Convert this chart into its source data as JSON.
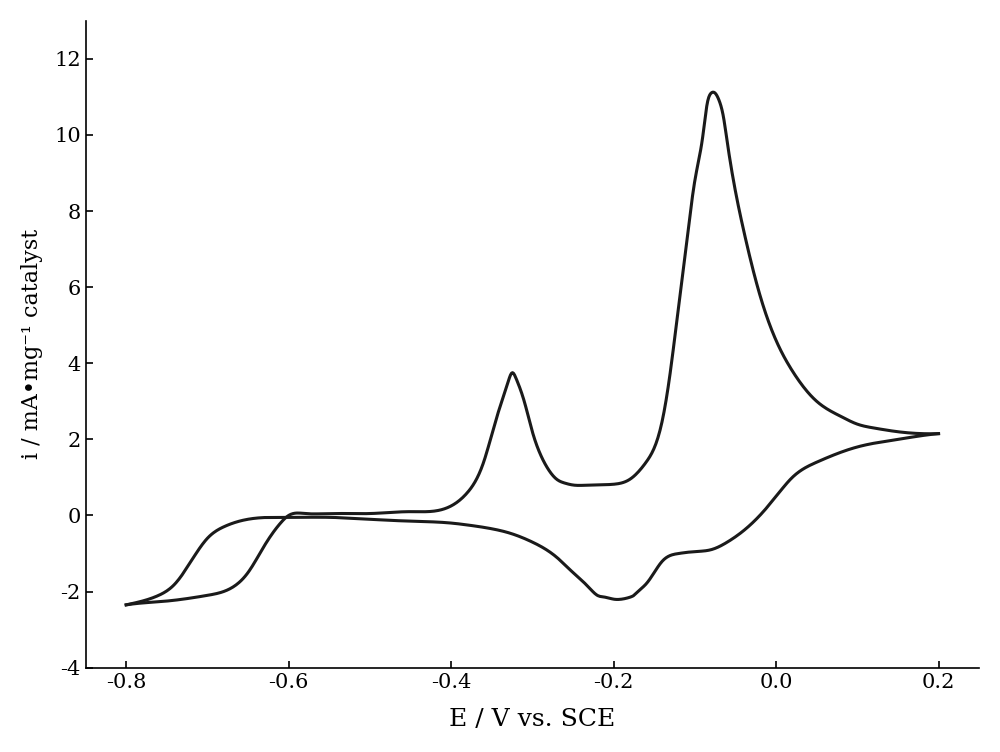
{
  "xlabel": "E / V vs. SCE",
  "ylabel": "i / mA•mg⁻¹ catalyst",
  "xlim": [
    -0.85,
    0.25
  ],
  "ylim": [
    -4,
    13
  ],
  "xticks": [
    -0.8,
    -0.6,
    -0.4,
    -0.2,
    0.0,
    0.2
  ],
  "yticks": [
    -4,
    -2,
    0,
    2,
    4,
    6,
    8,
    10,
    12
  ],
  "line_color": "#1a1a1a",
  "line_width": 2.2,
  "background_color": "#ffffff",
  "xlabel_fontsize": 18,
  "ylabel_fontsize": 16,
  "tick_fontsize": 15,
  "cv_forward": [
    [
      -0.8,
      -2.35
    ],
    [
      -0.78,
      -2.3
    ],
    [
      -0.75,
      -2.25
    ],
    [
      -0.73,
      -2.2
    ],
    [
      -0.7,
      -2.1
    ],
    [
      -0.67,
      -1.9
    ],
    [
      -0.65,
      -1.5
    ],
    [
      -0.63,
      -0.8
    ],
    [
      -0.61,
      -0.2
    ],
    [
      -0.6,
      0.0
    ],
    [
      -0.58,
      0.05
    ],
    [
      -0.55,
      0.05
    ],
    [
      -0.5,
      0.05
    ],
    [
      -0.45,
      0.1
    ],
    [
      -0.4,
      0.25
    ],
    [
      -0.38,
      0.6
    ],
    [
      -0.36,
      1.4
    ],
    [
      -0.345,
      2.5
    ],
    [
      -0.33,
      3.5
    ],
    [
      -0.325,
      3.75
    ],
    [
      -0.32,
      3.6
    ],
    [
      -0.31,
      3.0
    ],
    [
      -0.3,
      2.2
    ],
    [
      -0.29,
      1.6
    ],
    [
      -0.28,
      1.2
    ],
    [
      -0.27,
      0.95
    ],
    [
      -0.26,
      0.85
    ],
    [
      -0.25,
      0.8
    ],
    [
      -0.23,
      0.8
    ],
    [
      -0.2,
      0.82
    ],
    [
      -0.18,
      0.95
    ],
    [
      -0.16,
      1.4
    ],
    [
      -0.14,
      2.5
    ],
    [
      -0.13,
      3.8
    ],
    [
      -0.12,
      5.5
    ],
    [
      -0.11,
      7.2
    ],
    [
      -0.1,
      8.8
    ],
    [
      -0.09,
      10.0
    ],
    [
      -0.085,
      10.8
    ],
    [
      -0.08,
      11.1
    ],
    [
      -0.075,
      11.1
    ],
    [
      -0.07,
      10.9
    ],
    [
      -0.065,
      10.5
    ],
    [
      -0.06,
      9.8
    ],
    [
      -0.04,
      7.5
    ],
    [
      -0.02,
      5.8
    ],
    [
      0.0,
      4.6
    ],
    [
      0.02,
      3.8
    ],
    [
      0.05,
      3.0
    ],
    [
      0.08,
      2.6
    ],
    [
      0.1,
      2.4
    ],
    [
      0.12,
      2.3
    ],
    [
      0.15,
      2.2
    ],
    [
      0.18,
      2.15
    ],
    [
      0.2,
      2.15
    ]
  ],
  "cv_backward": [
    [
      0.2,
      2.15
    ],
    [
      0.18,
      2.1
    ],
    [
      0.15,
      2.0
    ],
    [
      0.1,
      1.8
    ],
    [
      0.05,
      1.4
    ],
    [
      0.02,
      1.0
    ],
    [
      0.0,
      0.5
    ],
    [
      -0.02,
      0.0
    ],
    [
      -0.04,
      -0.4
    ],
    [
      -0.06,
      -0.7
    ],
    [
      -0.08,
      -0.9
    ],
    [
      -0.1,
      -0.95
    ],
    [
      -0.12,
      -1.0
    ],
    [
      -0.13,
      -1.05
    ],
    [
      -0.14,
      -1.2
    ],
    [
      -0.15,
      -1.5
    ],
    [
      -0.16,
      -1.8
    ],
    [
      -0.17,
      -2.0
    ],
    [
      -0.175,
      -2.1
    ],
    [
      -0.18,
      -2.15
    ],
    [
      -0.19,
      -2.2
    ],
    [
      -0.2,
      -2.2
    ],
    [
      -0.21,
      -2.15
    ],
    [
      -0.22,
      -2.1
    ],
    [
      -0.23,
      -1.9
    ],
    [
      -0.25,
      -1.5
    ],
    [
      -0.27,
      -1.1
    ],
    [
      -0.3,
      -0.7
    ],
    [
      -0.33,
      -0.45
    ],
    [
      -0.35,
      -0.35
    ],
    [
      -0.38,
      -0.25
    ],
    [
      -0.4,
      -0.2
    ],
    [
      -0.45,
      -0.15
    ],
    [
      -0.5,
      -0.1
    ],
    [
      -0.55,
      -0.05
    ],
    [
      -0.6,
      -0.05
    ],
    [
      -0.65,
      -0.1
    ],
    [
      -0.68,
      -0.3
    ],
    [
      -0.7,
      -0.6
    ],
    [
      -0.72,
      -1.2
    ],
    [
      -0.74,
      -1.8
    ],
    [
      -0.76,
      -2.1
    ],
    [
      -0.78,
      -2.25
    ],
    [
      -0.8,
      -2.35
    ]
  ]
}
